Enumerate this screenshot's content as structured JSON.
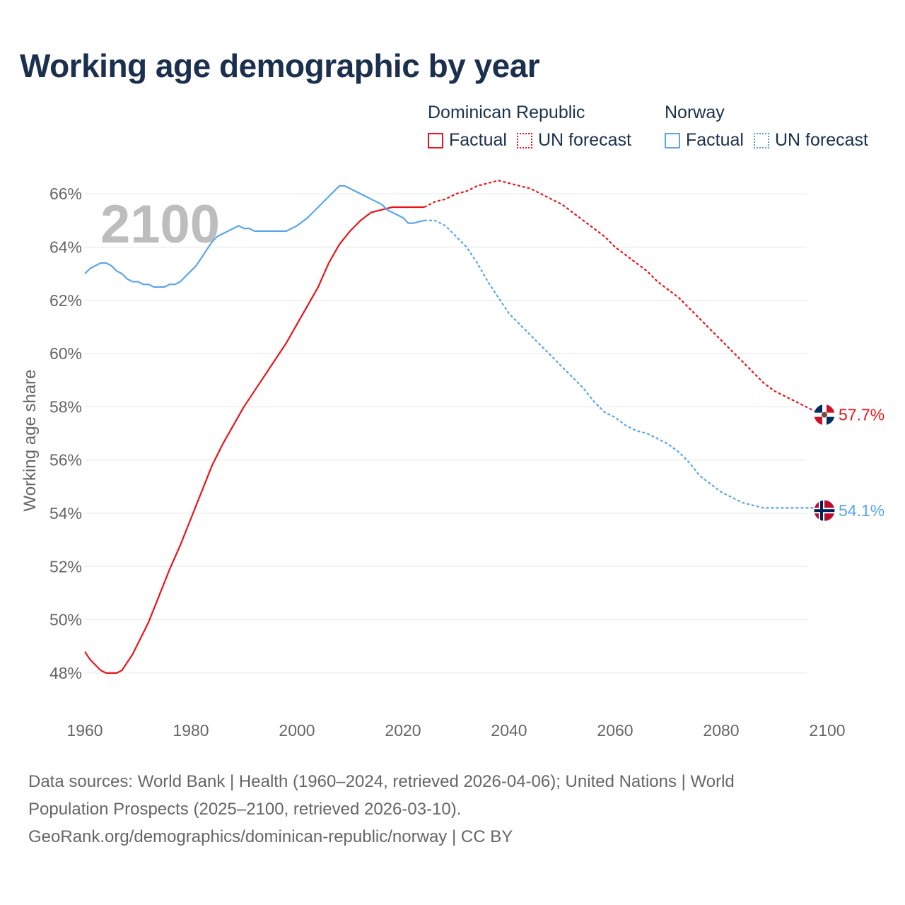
{
  "title": "Working age demographic by year",
  "legend": {
    "groups": [
      {
        "name": "Dominican Republic",
        "color": "#e8141b",
        "factual": "Factual",
        "forecast": "UN forecast"
      },
      {
        "name": "Norway",
        "color": "#5aa6e8",
        "factual": "Factual",
        "forecast": "UN forecast"
      }
    ]
  },
  "footer": {
    "line1": "Data sources: World Bank | Health (1960–2024, retrieved 2026-04-06); United Nations | World",
    "line2": "Population Prospects (2025–2100, retrieved 2026-03-10).",
    "line3": "GeoRank.org/demographics/dominican-republic/norway | CC BY"
  },
  "chart_data": {
    "type": "line",
    "title": "Working age demographic by year",
    "year_label": "2100",
    "xlabel": "",
    "ylabel": "Working age share",
    "xlim": [
      1960,
      2100
    ],
    "ylim": [
      47,
      67
    ],
    "x_ticks": [
      1960,
      1980,
      2000,
      2020,
      2040,
      2060,
      2080,
      2100
    ],
    "y_ticks": [
      48,
      50,
      52,
      54,
      56,
      58,
      60,
      62,
      64,
      66
    ],
    "y_tick_labels": [
      "48%",
      "50%",
      "52%",
      "54%",
      "56%",
      "58%",
      "60%",
      "62%",
      "64%",
      "66%"
    ],
    "grid": true,
    "series": [
      {
        "name": "Dominican Republic",
        "color": "#e8141b",
        "end_label": "57.7%",
        "end_icon": "dominican-republic-flag-icon",
        "factual": {
          "x": [
            1960,
            1961,
            1963,
            1964,
            1965,
            1966,
            1967,
            1968,
            1969,
            1970,
            1972,
            1974,
            1976,
            1978,
            1980,
            1982,
            1984,
            1986,
            1988,
            1990,
            1992,
            1994,
            1996,
            1998,
            2000,
            2002,
            2004,
            2006,
            2008,
            2010,
            2012,
            2014,
            2016,
            2018,
            2020,
            2022,
            2024
          ],
          "y": [
            48.8,
            48.5,
            48.1,
            48.0,
            48.0,
            48.0,
            48.1,
            48.4,
            48.7,
            49.1,
            49.9,
            50.9,
            51.9,
            52.8,
            53.8,
            54.8,
            55.8,
            56.6,
            57.3,
            58.0,
            58.6,
            59.2,
            59.8,
            60.4,
            61.1,
            61.8,
            62.5,
            63.4,
            64.1,
            64.6,
            65.0,
            65.3,
            65.4,
            65.5,
            65.5,
            65.5,
            65.5
          ]
        },
        "forecast": {
          "x": [
            2024,
            2026,
            2028,
            2030,
            2032,
            2034,
            2036,
            2038,
            2040,
            2042,
            2044,
            2046,
            2048,
            2050,
            2052,
            2054,
            2056,
            2058,
            2060,
            2062,
            2064,
            2066,
            2068,
            2070,
            2072,
            2074,
            2076,
            2078,
            2080,
            2082,
            2084,
            2086,
            2088,
            2090,
            2092,
            2094,
            2096,
            2098,
            2100
          ],
          "y": [
            65.5,
            65.7,
            65.8,
            66.0,
            66.1,
            66.3,
            66.4,
            66.5,
            66.4,
            66.3,
            66.2,
            66.0,
            65.8,
            65.6,
            65.3,
            65.0,
            64.7,
            64.4,
            64.0,
            63.7,
            63.4,
            63.1,
            62.7,
            62.4,
            62.1,
            61.7,
            61.3,
            60.9,
            60.5,
            60.1,
            59.7,
            59.3,
            58.9,
            58.6,
            58.4,
            58.2,
            58.0,
            57.8,
            57.7
          ]
        }
      },
      {
        "name": "Norway",
        "color": "#5aa6e8",
        "end_label": "54.1%",
        "end_icon": "norway-flag-icon",
        "factual": {
          "x": [
            1960,
            1961,
            1962,
            1963,
            1964,
            1965,
            1966,
            1967,
            1968,
            1969,
            1970,
            1971,
            1972,
            1973,
            1974,
            1975,
            1976,
            1977,
            1978,
            1979,
            1980,
            1981,
            1982,
            1983,
            1984,
            1985,
            1986,
            1987,
            1988,
            1989,
            1990,
            1991,
            1992,
            1994,
            1996,
            1998,
            1999,
            2000,
            2002,
            2004,
            2006,
            2008,
            2009,
            2010,
            2012,
            2014,
            2016,
            2017,
            2018,
            2020,
            2021,
            2022,
            2024
          ],
          "y": [
            63.0,
            63.2,
            63.3,
            63.4,
            63.4,
            63.3,
            63.1,
            63.0,
            62.8,
            62.7,
            62.7,
            62.6,
            62.6,
            62.5,
            62.5,
            62.5,
            62.6,
            62.6,
            62.7,
            62.9,
            63.1,
            63.3,
            63.6,
            63.9,
            64.2,
            64.4,
            64.5,
            64.6,
            64.7,
            64.8,
            64.7,
            64.7,
            64.6,
            64.6,
            64.6,
            64.6,
            64.7,
            64.8,
            65.1,
            65.5,
            65.9,
            66.3,
            66.3,
            66.2,
            66.0,
            65.8,
            65.6,
            65.4,
            65.3,
            65.1,
            64.9,
            64.9,
            65.0
          ]
        },
        "forecast": {
          "x": [
            2024,
            2026,
            2028,
            2030,
            2032,
            2034,
            2036,
            2038,
            2040,
            2042,
            2044,
            2046,
            2048,
            2050,
            2052,
            2054,
            2056,
            2058,
            2060,
            2062,
            2064,
            2066,
            2068,
            2070,
            2072,
            2074,
            2076,
            2078,
            2080,
            2082,
            2084,
            2086,
            2088,
            2090,
            2092,
            2094,
            2096,
            2098,
            2100
          ],
          "y": [
            65.0,
            65.0,
            64.8,
            64.4,
            64.0,
            63.4,
            62.7,
            62.1,
            61.5,
            61.1,
            60.7,
            60.3,
            59.9,
            59.5,
            59.1,
            58.7,
            58.2,
            57.8,
            57.6,
            57.3,
            57.1,
            57.0,
            56.8,
            56.6,
            56.3,
            55.9,
            55.4,
            55.1,
            54.8,
            54.6,
            54.4,
            54.3,
            54.2,
            54.2,
            54.2,
            54.2,
            54.2,
            54.2,
            54.1
          ]
        }
      }
    ]
  }
}
